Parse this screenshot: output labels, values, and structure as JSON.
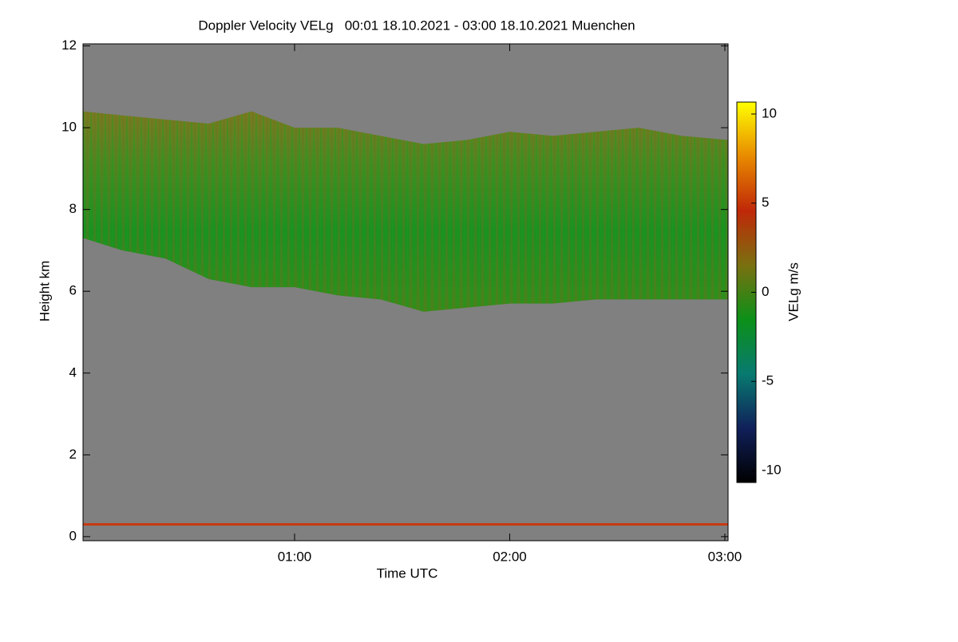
{
  "chart_data": {
    "type": "heatmap",
    "title": "Doppler Velocity VELg   00:01 18.10.2021 - 03:00 18.10.2021 Muenchen",
    "x_label": "Time UTC",
    "y_label": "Height km",
    "colorbar_label": "VELg m/s",
    "xlim": [
      0.0167,
      3.015
    ],
    "xticks": [
      {
        "value": 1,
        "label": "01:00"
      },
      {
        "value": 2,
        "label": "02:00"
      },
      {
        "value": 3,
        "label": "03:00"
      }
    ],
    "ylim": [
      -0.1,
      12.05
    ],
    "yticks": [
      0,
      2,
      4,
      6,
      8,
      10,
      12
    ],
    "clim": [
      -10.67,
      10.67
    ],
    "cticks": [
      -10,
      -5,
      0,
      5,
      10
    ],
    "colormap": [
      "#000000",
      "#10205a",
      "#087a70",
      "#0c9018",
      "#7a7010",
      "#c02808",
      "#e88a00",
      "#ffff00"
    ],
    "background": "#808080",
    "cloud": {
      "x": [
        0.017,
        0.2,
        0.4,
        0.6,
        0.8,
        1.0,
        1.2,
        1.4,
        1.6,
        1.8,
        2.0,
        2.2,
        2.4,
        2.6,
        2.8,
        3.015
      ],
      "top": [
        10.4,
        10.3,
        10.2,
        10.1,
        10.4,
        10.0,
        10.0,
        9.8,
        9.6,
        9.7,
        9.9,
        9.8,
        9.9,
        10.0,
        9.8,
        9.7
      ],
      "base": [
        7.3,
        7.0,
        6.8,
        6.3,
        6.1,
        6.1,
        5.9,
        5.8,
        5.5,
        5.6,
        5.7,
        5.7,
        5.8,
        5.8,
        5.8,
        5.8
      ]
    },
    "surface_layer": {
      "height": 0.3,
      "color": "#c83a10"
    }
  }
}
